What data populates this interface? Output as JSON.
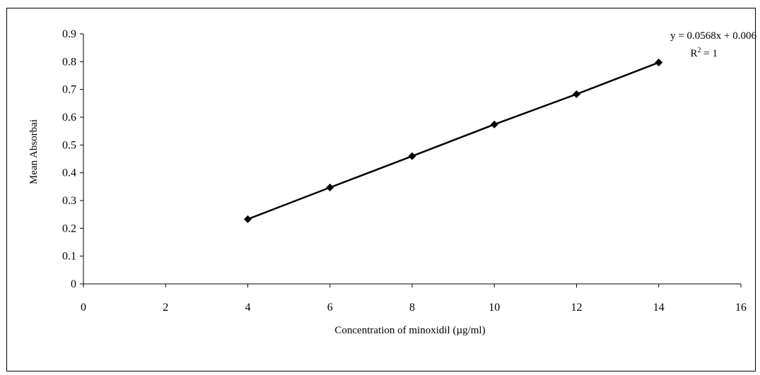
{
  "chart_data": {
    "type": "scatter",
    "title": "",
    "xlabel": "Concentration of minoxidil (µg/ml)",
    "ylabel": "Mean Absorbai",
    "xlim": [
      0,
      16
    ],
    "ylim": [
      0,
      0.9
    ],
    "x_ticks": [
      "0",
      "2",
      "4",
      "6",
      "8",
      "10",
      "12",
      "14",
      "16"
    ],
    "y_ticks": [
      "0",
      "0.1",
      "0.2",
      "0.3",
      "0.4",
      "0.5",
      "0.6",
      "0.7",
      "0.8",
      "0.9"
    ],
    "grid": false,
    "series": [
      {
        "marker": "diamond",
        "line": true,
        "x": [
          4,
          6,
          8,
          10,
          12,
          14
        ],
        "y": [
          0.233,
          0.347,
          0.46,
          0.574,
          0.683,
          0.797
        ]
      }
    ],
    "annotations": {
      "equation": "y = 0.0568x + 0.006",
      "r_squared_prefix": "R",
      "r_squared_exp": "2",
      "r_squared_suffix": " = 1"
    },
    "colors": {
      "line": "#000000",
      "marker": "#000000",
      "axis": "#000000"
    }
  }
}
